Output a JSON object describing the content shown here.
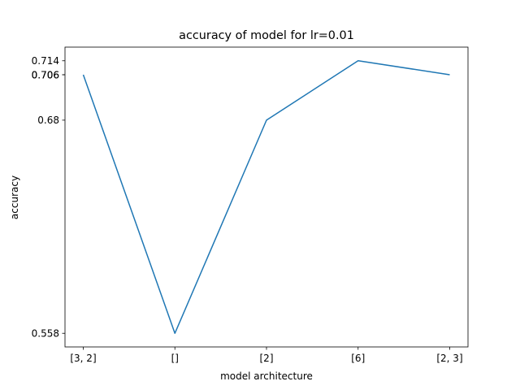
{
  "chart_data": {
    "type": "line",
    "title": "accuracy of model for lr=0.01",
    "xlabel": "model architecture",
    "ylabel": "accuracy",
    "categories": [
      "[3, 2]",
      "[]",
      "[2]",
      "[6]",
      "[2, 3]"
    ],
    "series": [
      {
        "values": [
          0.706,
          0.558,
          0.68,
          0.714,
          0.706
        ],
        "color": "#1f77b4"
      }
    ],
    "yticks": [
      "0.714",
      "0.706",
      "0.706",
      "0.68",
      "0.558"
    ],
    "ylim": [
      0.5502,
      0.7218
    ],
    "grid": false,
    "legend": "none"
  }
}
